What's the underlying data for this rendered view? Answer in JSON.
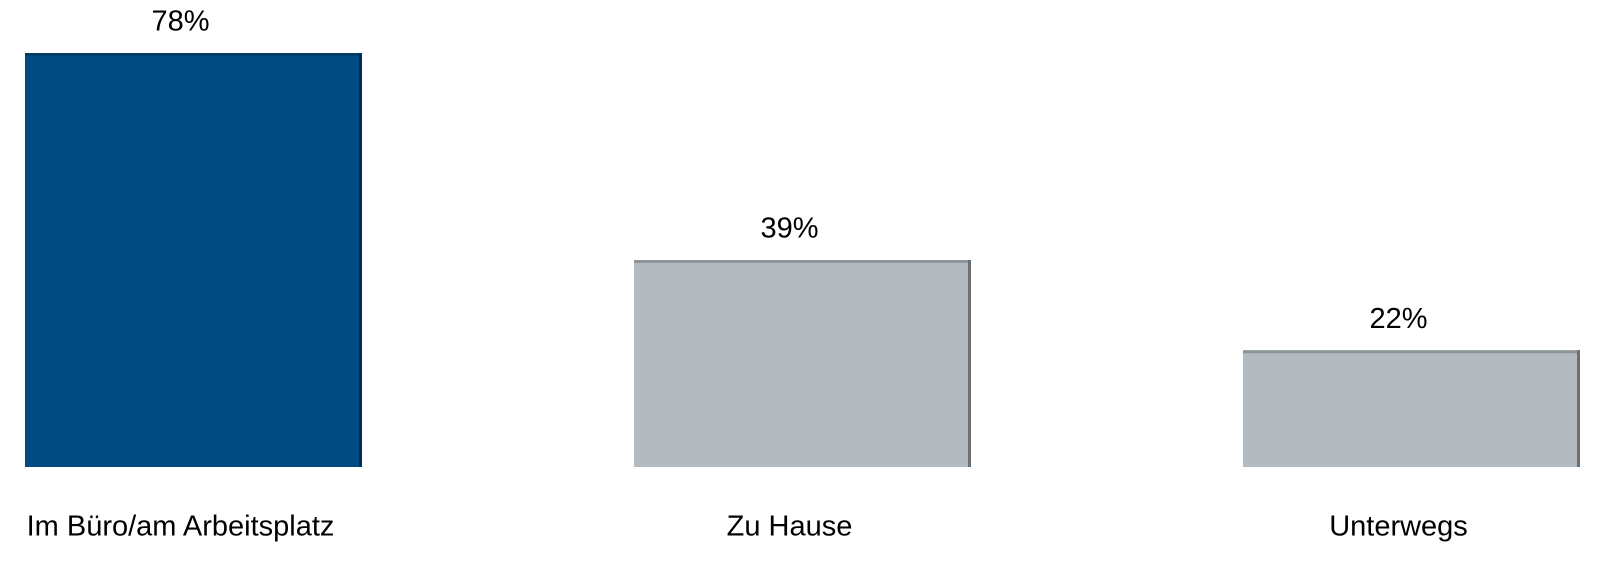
{
  "chart_data": {
    "type": "bar",
    "categories": [
      "Im Büro/am Arbeitsplatz",
      "Zu Hause",
      "Unterwegs"
    ],
    "values": [
      78,
      39,
      22
    ],
    "value_labels": [
      "78%",
      "39%",
      "22%"
    ],
    "colors": [
      "#004b82",
      "#b3bbc1",
      "#b3bbc1"
    ]
  }
}
